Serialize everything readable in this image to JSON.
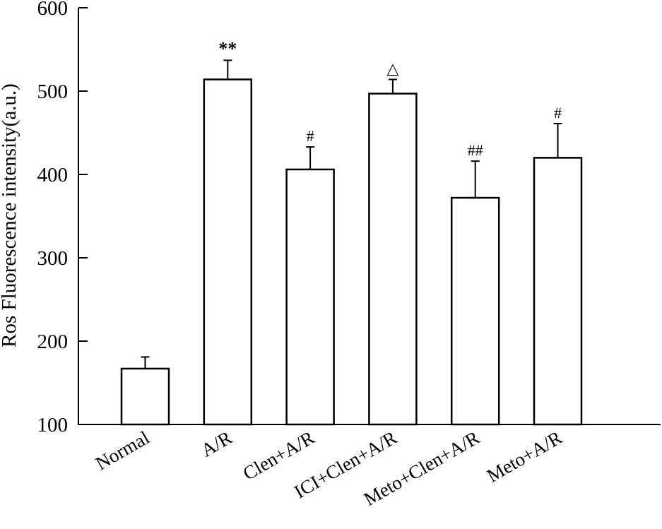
{
  "chart_data": {
    "type": "bar",
    "title": "",
    "xlabel": "",
    "ylabel": "Ros Fluorescence intensity(a.u.)",
    "ylim": [
      100,
      600
    ],
    "yticks": [
      100,
      200,
      300,
      400,
      500,
      600
    ],
    "grid": false,
    "categories": [
      "Normal",
      "A/R",
      "Clen+A/R",
      "ICI+Clen+A/R",
      "Meto+Clen+A/R",
      "Meto+A/R"
    ],
    "values": [
      167,
      514,
      406,
      497,
      372,
      420
    ],
    "errors": [
      14,
      23,
      27,
      17,
      44,
      41
    ],
    "annotations": [
      "",
      "**",
      "#",
      "△",
      "##",
      "#"
    ],
    "colors": {
      "bar_fill": "#ffffff",
      "bar_stroke": "#000000",
      "axis": "#000000"
    }
  }
}
